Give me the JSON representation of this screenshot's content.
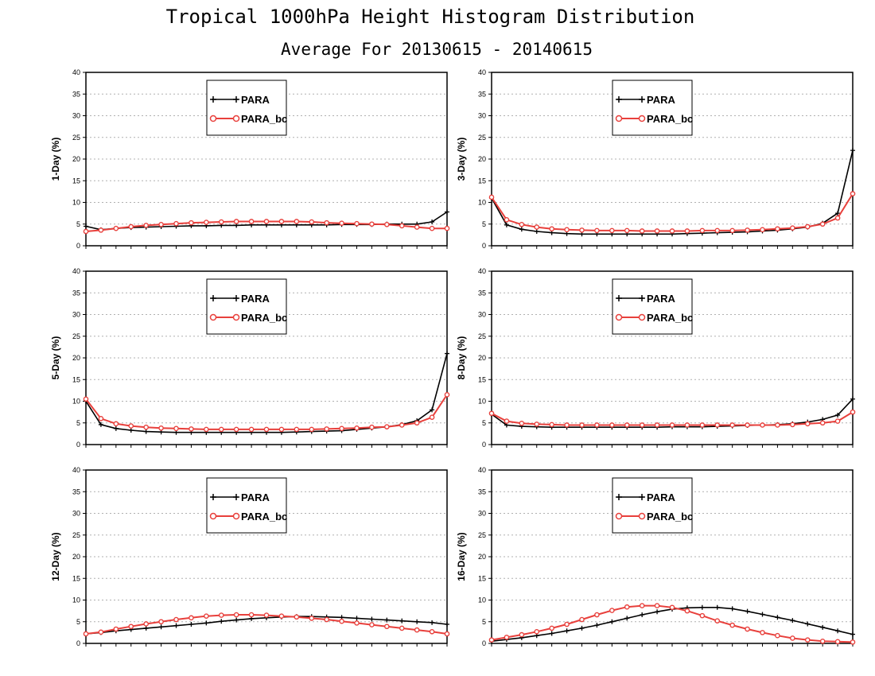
{
  "title": "Tropical 1000hPa Height Histogram Distribution",
  "subtitle": "Average For 20130615 - 20140615",
  "colors": {
    "PARA": "#000000",
    "PARA_bc": "#e8403c"
  },
  "chart_data": [
    {
      "type": "line",
      "ylabel": "1-Day (%)",
      "ylim": [
        0,
        40
      ],
      "yticks": [
        "0",
        "5",
        "10",
        "15",
        "20",
        "25",
        "30",
        "35",
        "40"
      ],
      "legend": "top-left",
      "grid": true,
      "series": [
        {
          "name": "PARA",
          "marker": "plus",
          "values": [
            4.5,
            3.7,
            4,
            4.2,
            4.3,
            4.4,
            4.5,
            4.6,
            4.6,
            4.7,
            4.7,
            4.8,
            4.8,
            4.8,
            4.8,
            4.8,
            4.8,
            4.9,
            4.9,
            4.9,
            5,
            5,
            5,
            5.5,
            7.8
          ]
        },
        {
          "name": "PARA_bc",
          "marker": "circle",
          "values": [
            3.3,
            3.6,
            4,
            4.4,
            4.7,
            4.9,
            5.1,
            5.3,
            5.4,
            5.5,
            5.6,
            5.6,
            5.6,
            5.6,
            5.6,
            5.5,
            5.3,
            5.2,
            5.1,
            5,
            4.9,
            4.6,
            4.3,
            4,
            4
          ]
        }
      ]
    },
    {
      "type": "line",
      "ylabel": "3-Day (%)",
      "ylim": [
        0,
        40
      ],
      "yticks": [
        "0",
        "5",
        "10",
        "15",
        "20",
        "25",
        "30",
        "35",
        "40"
      ],
      "legend": "top-left",
      "grid": true,
      "series": [
        {
          "name": "PARA",
          "marker": "plus",
          "values": [
            11,
            4.8,
            3.8,
            3.3,
            3,
            2.8,
            2.7,
            2.7,
            2.7,
            2.7,
            2.7,
            2.7,
            2.7,
            2.8,
            2.9,
            3,
            3.1,
            3.2,
            3.4,
            3.6,
            3.9,
            4.3,
            5.2,
            7.5,
            22
          ]
        },
        {
          "name": "PARA_bc",
          "marker": "circle",
          "values": [
            11.2,
            6,
            4.9,
            4.3,
            3.9,
            3.7,
            3.6,
            3.5,
            3.5,
            3.5,
            3.4,
            3.4,
            3.4,
            3.4,
            3.5,
            3.5,
            3.5,
            3.6,
            3.7,
            3.9,
            4.1,
            4.4,
            5,
            6.4,
            12
          ]
        }
      ]
    },
    {
      "type": "line",
      "ylabel": "5-Day (%)",
      "ylim": [
        0,
        40
      ],
      "yticks": [
        "0",
        "5",
        "10",
        "15",
        "20",
        "25",
        "30",
        "35",
        "40"
      ],
      "legend": "top-left",
      "grid": true,
      "series": [
        {
          "name": "PARA",
          "marker": "plus",
          "values": [
            10,
            4.6,
            3.7,
            3.3,
            3,
            2.9,
            2.8,
            2.8,
            2.8,
            2.8,
            2.8,
            2.8,
            2.8,
            2.8,
            2.9,
            3,
            3.1,
            3.2,
            3.5,
            3.8,
            4.1,
            4.6,
            5.5,
            8,
            21
          ]
        },
        {
          "name": "PARA_bc",
          "marker": "circle",
          "values": [
            10.5,
            6,
            4.8,
            4.3,
            4,
            3.8,
            3.7,
            3.6,
            3.5,
            3.5,
            3.5,
            3.5,
            3.5,
            3.5,
            3.5,
            3.5,
            3.6,
            3.7,
            3.8,
            4,
            4.1,
            4.5,
            5,
            6.3,
            11.5
          ]
        }
      ]
    },
    {
      "type": "line",
      "ylabel": "8-Day (%)",
      "ylim": [
        0,
        40
      ],
      "yticks": [
        "0",
        "5",
        "10",
        "15",
        "20",
        "25",
        "30",
        "35",
        "40"
      ],
      "legend": "top-left",
      "grid": true,
      "series": [
        {
          "name": "PARA",
          "marker": "plus",
          "values": [
            7,
            4.5,
            4.2,
            4.1,
            4,
            4,
            4,
            4,
            4,
            4,
            4,
            4,
            4.1,
            4.1,
            4.1,
            4.2,
            4.3,
            4.4,
            4.5,
            4.6,
            4.8,
            5.2,
            5.8,
            6.8,
            10.5
          ]
        },
        {
          "name": "PARA_bc",
          "marker": "circle",
          "values": [
            7.2,
            5.4,
            4.9,
            4.7,
            4.6,
            4.5,
            4.5,
            4.5,
            4.5,
            4.5,
            4.5,
            4.5,
            4.5,
            4.5,
            4.5,
            4.5,
            4.5,
            4.5,
            4.5,
            4.5,
            4.6,
            4.8,
            5,
            5.4,
            7.5
          ]
        }
      ]
    },
    {
      "type": "line",
      "ylabel": "12-Day (%)",
      "ylim": [
        0,
        40
      ],
      "yticks": [
        "0",
        "5",
        "10",
        "15",
        "20",
        "25",
        "30",
        "35",
        "40"
      ],
      "legend": "top-left",
      "grid": true,
      "series": [
        {
          "name": "PARA",
          "marker": "plus",
          "values": [
            2.2,
            2.5,
            2.9,
            3.2,
            3.5,
            3.8,
            4.1,
            4.4,
            4.7,
            5.1,
            5.4,
            5.7,
            5.9,
            6.1,
            6.2,
            6.2,
            6.1,
            6,
            5.8,
            5.6,
            5.4,
            5.2,
            5,
            4.8,
            4.4
          ]
        },
        {
          "name": "PARA_bc",
          "marker": "circle",
          "values": [
            2.2,
            2.6,
            3.3,
            3.9,
            4.5,
            5,
            5.5,
            5.9,
            6.3,
            6.5,
            6.6,
            6.6,
            6.5,
            6.3,
            6.1,
            5.8,
            5.5,
            5.1,
            4.7,
            4.3,
            3.9,
            3.5,
            3.1,
            2.7,
            2.2
          ]
        }
      ]
    },
    {
      "type": "line",
      "ylabel": "16-Day (%)",
      "ylim": [
        0,
        40
      ],
      "yticks": [
        "0",
        "5",
        "10",
        "15",
        "20",
        "25",
        "30",
        "35",
        "40"
      ],
      "legend": "top-left",
      "grid": true,
      "series": [
        {
          "name": "PARA",
          "marker": "plus",
          "values": [
            0.5,
            0.9,
            1.3,
            1.8,
            2.3,
            2.9,
            3.5,
            4.2,
            5,
            5.8,
            6.6,
            7.3,
            7.9,
            8.2,
            8.3,
            8.3,
            8,
            7.4,
            6.7,
            6,
            5.3,
            4.5,
            3.7,
            2.9,
            2.1
          ]
        },
        {
          "name": "PARA_bc",
          "marker": "circle",
          "values": [
            0.8,
            1.4,
            2,
            2.7,
            3.5,
            4.4,
            5.5,
            6.6,
            7.6,
            8.4,
            8.7,
            8.7,
            8.3,
            7.5,
            6.4,
            5.2,
            4.2,
            3.3,
            2.5,
            1.8,
            1.2,
            0.8,
            0.5,
            0.4,
            0.3
          ]
        }
      ]
    }
  ]
}
